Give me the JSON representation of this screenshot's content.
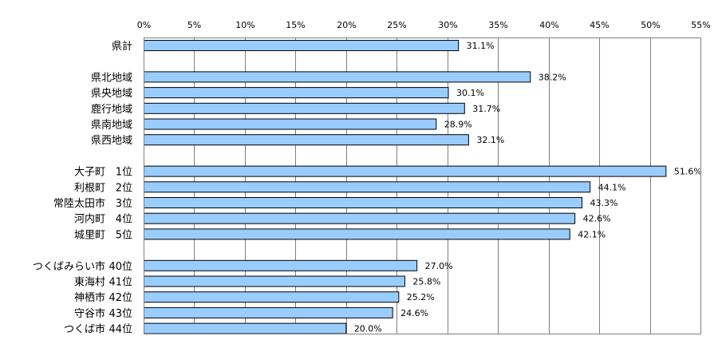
{
  "chart_data": {
    "type": "bar",
    "orientation": "horizontal",
    "title": "",
    "xlabel": "",
    "ylabel": "",
    "xlim": [
      0,
      55
    ],
    "x_ticks": [
      "0%",
      "5%",
      "10%",
      "15%",
      "20%",
      "25%",
      "30%",
      "35%",
      "40%",
      "45%",
      "50%",
      "55%"
    ],
    "grid": "vertical",
    "bar_color": "#99ccff",
    "groups": [
      {
        "items": [
          {
            "name": "県計",
            "rank": "",
            "value": 31.1,
            "label": "31.1%"
          }
        ]
      },
      {
        "items": [
          {
            "name": "県北地域",
            "rank": "",
            "value": 38.2,
            "label": "38.2%"
          },
          {
            "name": "県央地域",
            "rank": "",
            "value": 30.1,
            "label": "30.1%"
          },
          {
            "name": "鹿行地域",
            "rank": "",
            "value": 31.7,
            "label": "31.7%"
          },
          {
            "name": "県南地域",
            "rank": "",
            "value": 28.9,
            "label": "28.9%"
          },
          {
            "name": "県西地域",
            "rank": "",
            "value": 32.1,
            "label": "32.1%"
          }
        ]
      },
      {
        "items": [
          {
            "name": "大子町",
            "rank": "1位",
            "value": 51.6,
            "label": "51.6%"
          },
          {
            "name": "利根町",
            "rank": "2位",
            "value": 44.1,
            "label": "44.1%"
          },
          {
            "name": "常陸太田市",
            "rank": "3位",
            "value": 43.3,
            "label": "43.3%"
          },
          {
            "name": "河内町",
            "rank": "4位",
            "value": 42.6,
            "label": "42.6%"
          },
          {
            "name": "城里町",
            "rank": "5位",
            "value": 42.1,
            "label": "42.1%"
          }
        ]
      },
      {
        "items": [
          {
            "name": "つくばみらい市",
            "rank": "40位",
            "value": 27.0,
            "label": "27.0%"
          },
          {
            "name": "東海村",
            "rank": "41位",
            "value": 25.8,
            "label": "25.8%"
          },
          {
            "name": "神栖市",
            "rank": "42位",
            "value": 25.2,
            "label": "25.2%"
          },
          {
            "name": "守谷市",
            "rank": "43位",
            "value": 24.6,
            "label": "24.6%"
          },
          {
            "name": "つくば市",
            "rank": "44位",
            "value": 20.0,
            "label": "20.0%"
          }
        ]
      }
    ]
  }
}
